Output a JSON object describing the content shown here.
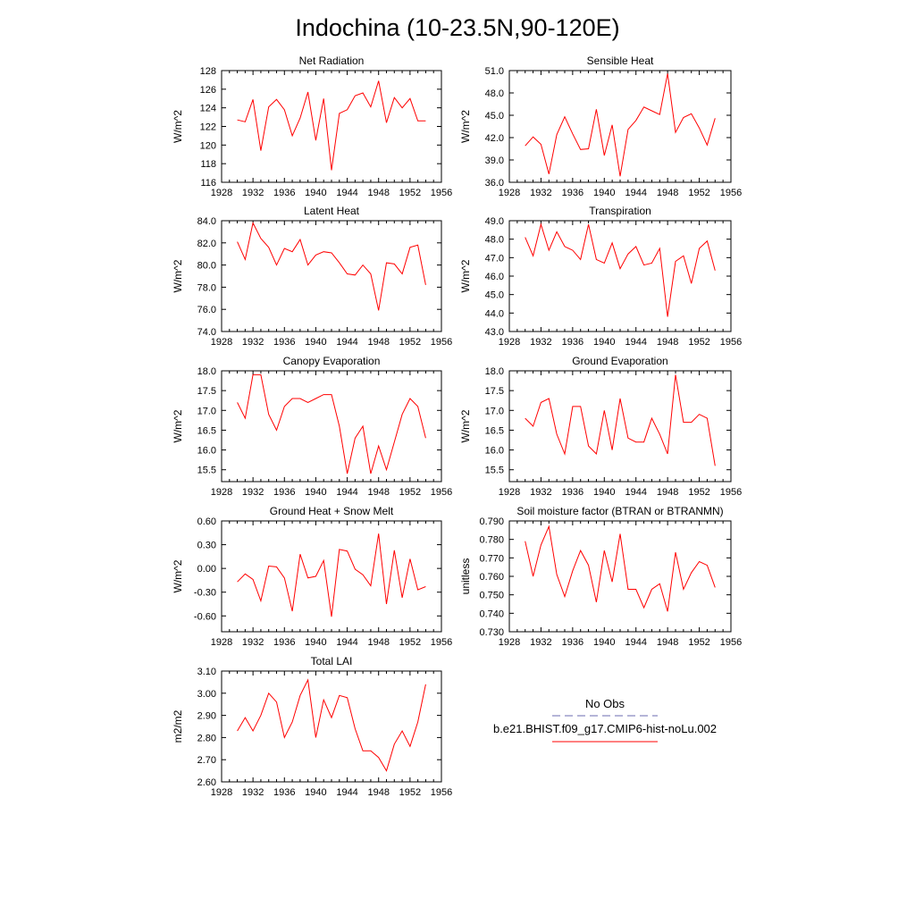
{
  "title": "Indochina (10-23.5N,90-120E)",
  "colors": {
    "series": "#ff0000",
    "obs": "#6b6bb0",
    "axis": "#000000"
  },
  "legend": {
    "obs_label": "No Obs",
    "model_label": "b.e21.BHIST.f09_g17.CMIP6-hist-noLu.002"
  },
  "chart_data": [
    {
      "type": "line",
      "title": "Net Radiation",
      "ylabel": "W/m^2",
      "xlim": [
        1928,
        1956
      ],
      "ylim": [
        116,
        128
      ],
      "xticks": [
        "1928",
        "1932",
        "1936",
        "1940",
        "1944",
        "1948",
        "1952",
        "1956"
      ],
      "yticks": [
        "116",
        "118",
        "120",
        "122",
        "124",
        "126",
        "128"
      ],
      "x": [
        1930,
        1931,
        1932,
        1933,
        1934,
        1935,
        1936,
        1937,
        1938,
        1939,
        1940,
        1941,
        1942,
        1943,
        1944,
        1945,
        1946,
        1947,
        1948,
        1949,
        1950,
        1951,
        1952,
        1953,
        1954
      ],
      "series": [
        {
          "values": [
            122.7,
            122.5,
            124.9,
            119.4,
            124.1,
            124.9,
            123.8,
            121.0,
            122.9,
            125.7,
            120.5,
            125.0,
            117.3,
            123.4,
            123.8,
            125.3,
            125.6,
            124.1,
            126.9,
            122.4,
            125.1,
            124.0,
            125.0,
            122.6,
            122.6
          ]
        }
      ]
    },
    {
      "type": "line",
      "title": "Sensible Heat",
      "ylabel": "W/m^2",
      "xlim": [
        1928,
        1956
      ],
      "ylim": [
        36,
        51
      ],
      "xticks": [
        "1928",
        "1932",
        "1936",
        "1940",
        "1944",
        "1948",
        "1952",
        "1956"
      ],
      "yticks": [
        "36.0",
        "39.0",
        "42.0",
        "45.0",
        "48.0",
        "51.0"
      ],
      "x": [
        1930,
        1931,
        1932,
        1933,
        1934,
        1935,
        1936,
        1937,
        1938,
        1939,
        1940,
        1941,
        1942,
        1943,
        1944,
        1945,
        1946,
        1947,
        1948,
        1949,
        1950,
        1951,
        1952,
        1953,
        1954
      ],
      "series": [
        {
          "values": [
            40.9,
            42.1,
            41.1,
            37.1,
            42.4,
            44.8,
            42.5,
            40.4,
            40.5,
            45.8,
            39.6,
            43.7,
            36.8,
            43.1,
            44.3,
            46.1,
            45.6,
            45.1,
            50.6,
            42.7,
            44.7,
            45.2,
            43.3,
            41.0,
            44.6
          ]
        }
      ]
    },
    {
      "type": "line",
      "title": "Latent Heat",
      "ylabel": "W/m^2",
      "xlim": [
        1928,
        1956
      ],
      "ylim": [
        74,
        84
      ],
      "xticks": [
        "1928",
        "1932",
        "1936",
        "1940",
        "1944",
        "1948",
        "1952",
        "1956"
      ],
      "yticks": [
        "74.0",
        "76.0",
        "78.0",
        "80.0",
        "82.0",
        "84.0"
      ],
      "x": [
        1930,
        1931,
        1932,
        1933,
        1934,
        1935,
        1936,
        1937,
        1938,
        1939,
        1940,
        1941,
        1942,
        1943,
        1944,
        1945,
        1946,
        1947,
        1948,
        1949,
        1950,
        1951,
        1952,
        1953,
        1954
      ],
      "series": [
        {
          "values": [
            82.1,
            80.5,
            83.8,
            82.4,
            81.6,
            80.0,
            81.5,
            81.2,
            82.3,
            80.0,
            80.9,
            81.2,
            81.1,
            80.2,
            79.2,
            79.1,
            80.0,
            79.2,
            75.9,
            80.2,
            80.1,
            79.2,
            81.6,
            81.8,
            78.2
          ]
        }
      ]
    },
    {
      "type": "line",
      "title": "Transpiration",
      "ylabel": "W/m^2",
      "xlim": [
        1928,
        1956
      ],
      "ylim": [
        43,
        49
      ],
      "xticks": [
        "1928",
        "1932",
        "1936",
        "1940",
        "1944",
        "1948",
        "1952",
        "1956"
      ],
      "yticks": [
        "43.0",
        "44.0",
        "45.0",
        "46.0",
        "47.0",
        "48.0",
        "49.0"
      ],
      "x": [
        1930,
        1931,
        1932,
        1933,
        1934,
        1935,
        1936,
        1937,
        1938,
        1939,
        1940,
        1941,
        1942,
        1943,
        1944,
        1945,
        1946,
        1947,
        1948,
        1949,
        1950,
        1951,
        1952,
        1953,
        1954
      ],
      "series": [
        {
          "values": [
            48.1,
            47.1,
            48.8,
            47.4,
            48.4,
            47.6,
            47.4,
            46.9,
            48.8,
            46.9,
            46.7,
            47.8,
            46.4,
            47.2,
            47.6,
            46.6,
            46.7,
            47.5,
            43.8,
            46.8,
            47.1,
            45.6,
            47.5,
            47.9,
            46.3
          ]
        }
      ]
    },
    {
      "type": "line",
      "title": "Canopy Evaporation",
      "ylabel": "W/m^2",
      "xlim": [
        1928,
        1956
      ],
      "ylim": [
        15.2,
        18.0
      ],
      "xticks": [
        "1928",
        "1932",
        "1936",
        "1940",
        "1944",
        "1948",
        "1952",
        "1956"
      ],
      "yticks": [
        "15.5",
        "16.0",
        "16.5",
        "17.0",
        "17.5",
        "18.0"
      ],
      "x": [
        1930,
        1931,
        1932,
        1933,
        1934,
        1935,
        1936,
        1937,
        1938,
        1939,
        1940,
        1941,
        1942,
        1943,
        1944,
        1945,
        1946,
        1947,
        1948,
        1949,
        1950,
        1951,
        1952,
        1953,
        1954
      ],
      "series": [
        {
          "values": [
            17.2,
            16.8,
            17.9,
            17.9,
            16.9,
            16.5,
            17.1,
            17.3,
            17.3,
            17.2,
            17.3,
            17.4,
            17.4,
            16.6,
            15.4,
            16.3,
            16.6,
            15.4,
            16.1,
            15.5,
            16.2,
            16.9,
            17.3,
            17.1,
            16.3
          ]
        }
      ]
    },
    {
      "type": "line",
      "title": "Ground Evaporation",
      "ylabel": "W/m^2",
      "xlim": [
        1928,
        1956
      ],
      "ylim": [
        15.2,
        18.0
      ],
      "xticks": [
        "1928",
        "1932",
        "1936",
        "1940",
        "1944",
        "1948",
        "1952",
        "1956"
      ],
      "yticks": [
        "15.5",
        "16.0",
        "16.5",
        "17.0",
        "17.5",
        "18.0"
      ],
      "x": [
        1930,
        1931,
        1932,
        1933,
        1934,
        1935,
        1936,
        1937,
        1938,
        1939,
        1940,
        1941,
        1942,
        1943,
        1944,
        1945,
        1946,
        1947,
        1948,
        1949,
        1950,
        1951,
        1952,
        1953,
        1954
      ],
      "series": [
        {
          "values": [
            16.8,
            16.6,
            17.2,
            17.3,
            16.4,
            15.9,
            17.1,
            17.1,
            16.1,
            15.9,
            17.0,
            16.0,
            17.3,
            16.3,
            16.2,
            16.2,
            16.8,
            16.4,
            15.9,
            17.9,
            16.7,
            16.7,
            16.9,
            16.8,
            15.6
          ]
        }
      ]
    },
    {
      "type": "line",
      "title": "Ground Heat + Snow Melt",
      "ylabel": "W/m^2",
      "xlim": [
        1928,
        1956
      ],
      "ylim": [
        -0.8,
        0.6
      ],
      "xticks": [
        "1928",
        "1932",
        "1936",
        "1940",
        "1944",
        "1948",
        "1952",
        "1956"
      ],
      "yticks": [
        "-0.60",
        "-0.30",
        "0.00",
        "0.30",
        "0.60"
      ],
      "x": [
        1930,
        1931,
        1932,
        1933,
        1934,
        1935,
        1936,
        1937,
        1938,
        1939,
        1940,
        1941,
        1942,
        1943,
        1944,
        1945,
        1946,
        1947,
        1948,
        1949,
        1950,
        1951,
        1952,
        1953,
        1954
      ],
      "series": [
        {
          "values": [
            -0.17,
            -0.07,
            -0.14,
            -0.41,
            0.03,
            0.02,
            -0.12,
            -0.54,
            0.18,
            -0.12,
            -0.1,
            0.1,
            -0.61,
            0.24,
            0.22,
            -0.01,
            -0.08,
            -0.22,
            0.44,
            -0.45,
            0.23,
            -0.37,
            0.12,
            -0.27,
            -0.23
          ]
        }
      ]
    },
    {
      "type": "line",
      "title": "Soil moisture factor (BTRAN or BTRANMN)",
      "ylabel": "unitless",
      "xlim": [
        1928,
        1956
      ],
      "ylim": [
        0.73,
        0.79
      ],
      "xticks": [
        "1928",
        "1932",
        "1936",
        "1940",
        "1944",
        "1948",
        "1952",
        "1956"
      ],
      "yticks": [
        "0.730",
        "0.740",
        "0.750",
        "0.760",
        "0.770",
        "0.780",
        "0.790"
      ],
      "x": [
        1930,
        1931,
        1932,
        1933,
        1934,
        1935,
        1936,
        1937,
        1938,
        1939,
        1940,
        1941,
        1942,
        1943,
        1944,
        1945,
        1946,
        1947,
        1948,
        1949,
        1950,
        1951,
        1952,
        1953,
        1954
      ],
      "series": [
        {
          "values": [
            0.779,
            0.76,
            0.777,
            0.787,
            0.761,
            0.749,
            0.763,
            0.774,
            0.766,
            0.746,
            0.774,
            0.757,
            0.783,
            0.753,
            0.753,
            0.743,
            0.753,
            0.756,
            0.741,
            0.773,
            0.753,
            0.762,
            0.768,
            0.766,
            0.754
          ]
        }
      ]
    },
    {
      "type": "line",
      "title": "Total LAI",
      "ylabel": "m2/m2",
      "xlim": [
        1928,
        1956
      ],
      "ylim": [
        2.6,
        3.1
      ],
      "xticks": [
        "1928",
        "1932",
        "1936",
        "1940",
        "1944",
        "1948",
        "1952",
        "1956"
      ],
      "yticks": [
        "2.60",
        "2.70",
        "2.80",
        "2.90",
        "3.00",
        "3.10"
      ],
      "x": [
        1930,
        1931,
        1932,
        1933,
        1934,
        1935,
        1936,
        1937,
        1938,
        1939,
        1940,
        1941,
        1942,
        1943,
        1944,
        1945,
        1946,
        1947,
        1948,
        1949,
        1950,
        1951,
        1952,
        1953,
        1954
      ],
      "series": [
        {
          "values": [
            2.83,
            2.89,
            2.83,
            2.9,
            3.0,
            2.96,
            2.8,
            2.87,
            2.99,
            3.06,
            2.8,
            2.97,
            2.89,
            2.99,
            2.98,
            2.84,
            2.74,
            2.74,
            2.71,
            2.65,
            2.77,
            2.83,
            2.76,
            2.87,
            3.04
          ]
        }
      ]
    }
  ]
}
